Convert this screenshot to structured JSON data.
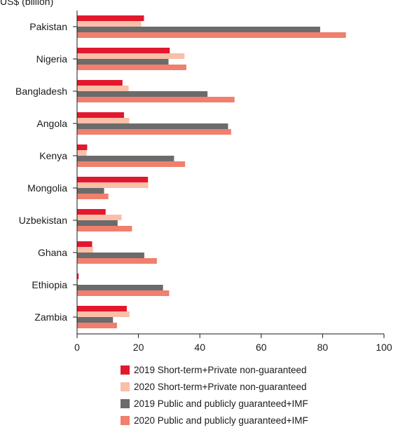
{
  "top_label": "US$ (billion)",
  "chart_data": {
    "type": "bar",
    "orientation": "horizontal",
    "categories": [
      "Pakistan",
      "Nigeria",
      "Bangladesh",
      "Angola",
      "Kenya",
      "Mongolia",
      "Uzbekistan",
      "Ghana",
      "Ethiopia",
      "Zambia"
    ],
    "series": [
      {
        "name": "2019 Short-term+Private non-guaranteed",
        "color": "#e2182d",
        "values": [
          21.8,
          30.2,
          14.8,
          15.3,
          3.3,
          23.1,
          9.3,
          4.9,
          0.5,
          16.2
        ]
      },
      {
        "name": "2020 Short-term+Private non-guaranteed",
        "color": "#f9bfa8",
        "values": [
          20.9,
          35.0,
          16.8,
          17.0,
          3.1,
          23.2,
          14.5,
          5.2,
          0.3,
          17.1
        ]
      },
      {
        "name": "2019 Public and publicly guaranteed+IMF",
        "color": "#6b6b6b",
        "values": [
          79.2,
          29.8,
          42.5,
          49.2,
          31.6,
          8.8,
          13.2,
          21.9,
          28.0,
          11.7
        ]
      },
      {
        "name": "2020 Public and publicly guaranteed+IMF",
        "color": "#f07f6d",
        "values": [
          87.6,
          35.6,
          51.3,
          50.2,
          35.2,
          10.2,
          17.9,
          26.0,
          30.0,
          13.0
        ]
      }
    ],
    "xlim": [
      0,
      100
    ],
    "xticks": [
      0,
      20,
      40,
      60,
      80,
      100
    ],
    "legend_position": "bottom"
  }
}
